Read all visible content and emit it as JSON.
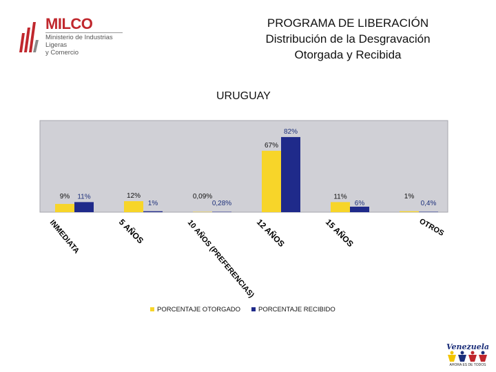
{
  "logo": {
    "brand": "MILCO",
    "subtitle_line1": "Ministerio de Industrias Ligeras",
    "subtitle_line2": "y Comercio"
  },
  "title": {
    "line1": "PROGRAMA DE LIBERACIÓN",
    "line2": "Distribución de la Desgravación",
    "line3": "Otorgada y Recibida"
  },
  "country": "URUGUAY",
  "badge": {
    "title": "Venezuela",
    "tagline": "AHORA ES DE TODOS"
  },
  "colors": {
    "otorgado": "#f7d529",
    "recibido": "#1f2a8a",
    "plot_background": "#d0d0d6",
    "brand_red": "#c0272d"
  },
  "chart_data": {
    "type": "bar",
    "categories": [
      "INMEDIATA",
      "5 AÑOS",
      "10 AÑOS (PREFERENCIAS)",
      "12 AÑOS",
      "15 AÑOS",
      "OTROS"
    ],
    "series": [
      {
        "name": "PORCENTAJE OTORGADO",
        "values": [
          9,
          12,
          0.09,
          67,
          11,
          1
        ],
        "labels": [
          "9%",
          "12%",
          "0,09%",
          "67%",
          "11%",
          "1%"
        ]
      },
      {
        "name": "PORCENTAJE RECIBIDO",
        "values": [
          11,
          1,
          0.28,
          82,
          6,
          0.4
        ],
        "labels": [
          "11%",
          "1%",
          "0,28%",
          "82%",
          "6%",
          "0,4%"
        ]
      }
    ],
    "ylim": [
      0,
      100
    ],
    "grid": false,
    "legend_position": "bottom"
  }
}
